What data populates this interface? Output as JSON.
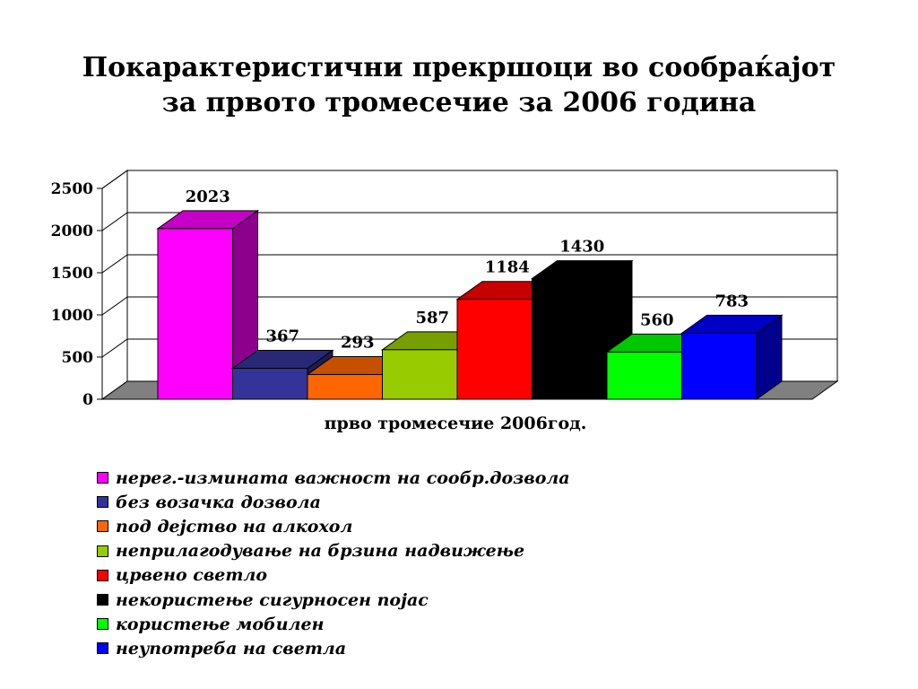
{
  "title": {
    "line1": "Покарактеристични прекршоци во сообраќајот",
    "line2": "за првото тромесечие за 2006 година"
  },
  "chart_data": {
    "type": "bar",
    "style": "3d-clustered",
    "xlabel": "прво тромесечие 2006год.",
    "ylabel": "",
    "ylim": [
      0,
      2500
    ],
    "yticks": [
      0,
      500,
      1000,
      1500,
      2000,
      2500
    ],
    "grid": true,
    "legend_position": "bottom",
    "series": [
      {
        "name": "нерег.-измината важност на сообр.дозвола",
        "value": 2023,
        "color": "#ff00ff"
      },
      {
        "name": "без возачка дозвола",
        "value": 367,
        "color": "#333399"
      },
      {
        "name": "под дејство на алкохол",
        "value": 293,
        "color": "#ff6600"
      },
      {
        "name": "неприлагодување на брзина надвижење",
        "value": 587,
        "color": "#99cc00"
      },
      {
        "name": "црвено светло",
        "value": 1184,
        "color": "#ff0000"
      },
      {
        "name": "некористење сигурносен појас",
        "value": 1430,
        "color": "#000000"
      },
      {
        "name": "користење мобилен",
        "value": 560,
        "color": "#00ff00"
      },
      {
        "name": "неупотреба на светла",
        "value": 783,
        "color": "#0000ff"
      }
    ]
  }
}
